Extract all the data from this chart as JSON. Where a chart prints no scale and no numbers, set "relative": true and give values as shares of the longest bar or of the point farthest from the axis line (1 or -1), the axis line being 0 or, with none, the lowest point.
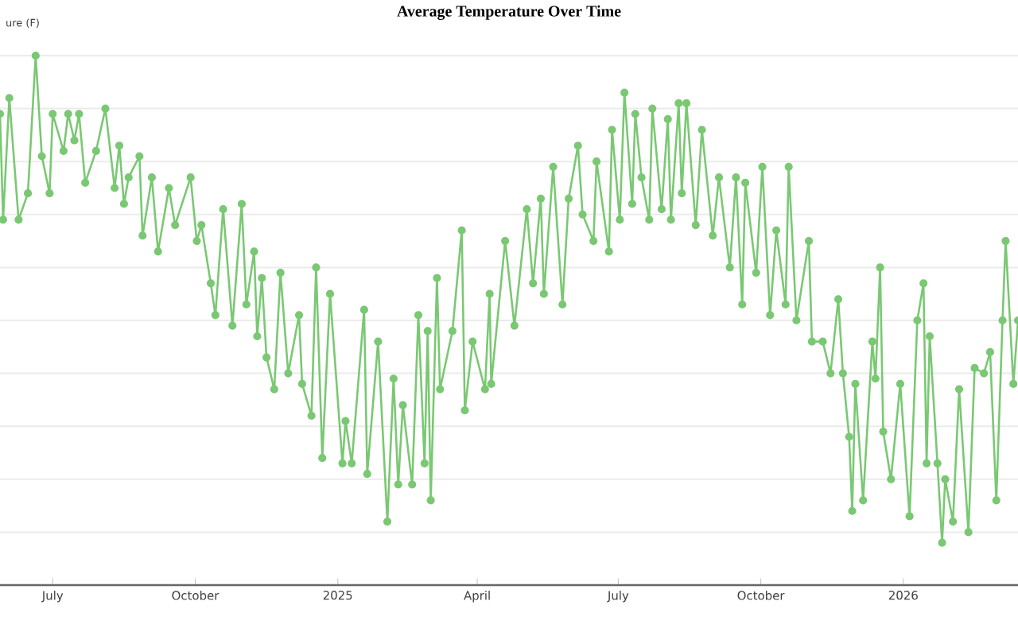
{
  "chart_data": {
    "type": "line",
    "title": "Average Temperature Over Time",
    "ylabel": "ure (F)",
    "relative": true,
    "grid": "y",
    "marker": "circle",
    "line_style": "solid",
    "xlim": [
      "2024-05-28",
      "2026-03-16"
    ],
    "xticks": [
      {
        "value": "2024-07-01",
        "label": "July"
      },
      {
        "value": "2024-10-01",
        "label": "October"
      },
      {
        "value": "2025-01-01",
        "label": "2025"
      },
      {
        "value": "2025-04-01",
        "label": "April"
      },
      {
        "value": "2025-07-01",
        "label": "July"
      },
      {
        "value": "2025-10-01",
        "label": "October"
      },
      {
        "value": "2026-01-01",
        "label": "2026"
      }
    ],
    "x": [
      "2024-05-28",
      "2024-05-30",
      "2024-06-03",
      "2024-06-09",
      "2024-06-15",
      "2024-06-20",
      "2024-06-24",
      "2024-06-29",
      "2024-07-01",
      "2024-07-08",
      "2024-07-11",
      "2024-07-15",
      "2024-07-18",
      "2024-07-22",
      "2024-07-29",
      "2024-08-04",
      "2024-08-10",
      "2024-08-13",
      "2024-08-16",
      "2024-08-19",
      "2024-08-26",
      "2024-08-28",
      "2024-09-03",
      "2024-09-07",
      "2024-09-14",
      "2024-09-18",
      "2024-09-28",
      "2024-10-02",
      "2024-10-05",
      "2024-10-11",
      "2024-10-14",
      "2024-10-19",
      "2024-10-25",
      "2024-10-31",
      "2024-11-03",
      "2024-11-08",
      "2024-11-10",
      "2024-11-13",
      "2024-11-16",
      "2024-11-21",
      "2024-11-25",
      "2024-11-30",
      "2024-12-07",
      "2024-12-09",
      "2024-12-15",
      "2024-12-18",
      "2024-12-22",
      "2024-12-27",
      "2025-01-04",
      "2025-01-06",
      "2025-01-10",
      "2025-01-18",
      "2025-01-20",
      "2025-01-27",
      "2025-02-02",
      "2025-02-06",
      "2025-02-09",
      "2025-02-12",
      "2025-02-18",
      "2025-02-22",
      "2025-02-26",
      "2025-02-28",
      "2025-03-02",
      "2025-03-06",
      "2025-03-08",
      "2025-03-16",
      "2025-03-22",
      "2025-03-24",
      "2025-03-29",
      "2025-04-06",
      "2025-04-09",
      "2025-04-10",
      "2025-04-19",
      "2025-04-25",
      "2025-05-03",
      "2025-05-07",
      "2025-05-12",
      "2025-05-14",
      "2025-05-20",
      "2025-05-26",
      "2025-05-30",
      "2025-06-05",
      "2025-06-08",
      "2025-06-15",
      "2025-06-17",
      "2025-06-25",
      "2025-06-27",
      "2025-07-02",
      "2025-07-05",
      "2025-07-10",
      "2025-07-12",
      "2025-07-16",
      "2025-07-21",
      "2025-07-23",
      "2025-07-29",
      "2025-08-02",
      "2025-08-04",
      "2025-08-09",
      "2025-08-11",
      "2025-08-14",
      "2025-08-20",
      "2025-08-24",
      "2025-08-31",
      "2025-09-04",
      "2025-09-11",
      "2025-09-15",
      "2025-09-19",
      "2025-09-21",
      "2025-09-28",
      "2025-10-02",
      "2025-10-07",
      "2025-10-11",
      "2025-10-17",
      "2025-10-19",
      "2025-10-24",
      "2025-11-01",
      "2025-11-03",
      "2025-11-10",
      "2025-11-15",
      "2025-11-20",
      "2025-11-23",
      "2025-11-27",
      "2025-11-29",
      "2025-12-01",
      "2025-12-06",
      "2025-12-12",
      "2025-12-14",
      "2025-12-17",
      "2025-12-19",
      "2025-12-24",
      "2025-12-30",
      "2026-01-05",
      "2026-01-10",
      "2026-01-14",
      "2026-01-16",
      "2026-01-18",
      "2026-01-23",
      "2026-01-26",
      "2026-01-28",
      "2026-02-02",
      "2026-02-06",
      "2026-02-12",
      "2026-02-16",
      "2026-02-22",
      "2026-02-26",
      "2026-03-02",
      "2026-03-06",
      "2026-03-08",
      "2026-03-13",
      "2026-03-16"
    ],
    "series": [
      {
        "color": "#7ac873",
        "values": [
          0.89,
          0.69,
          0.92,
          0.69,
          0.74,
          1.0,
          0.81,
          0.74,
          0.89,
          0.82,
          0.89,
          0.84,
          0.89,
          0.76,
          0.82,
          0.9,
          0.75,
          0.83,
          0.72,
          0.77,
          0.81,
          0.66,
          0.77,
          0.63,
          0.75,
          0.68,
          0.77,
          0.65,
          0.68,
          0.57,
          0.51,
          0.71,
          0.49,
          0.72,
          0.53,
          0.63,
          0.47,
          0.58,
          0.43,
          0.37,
          0.59,
          0.4,
          0.51,
          0.38,
          0.32,
          0.6,
          0.24,
          0.55,
          0.23,
          0.31,
          0.23,
          0.52,
          0.21,
          0.46,
          0.12,
          0.39,
          0.19,
          0.34,
          0.19,
          0.51,
          0.23,
          0.48,
          0.16,
          0.58,
          0.37,
          0.48,
          0.67,
          0.33,
          0.46,
          0.37,
          0.55,
          0.38,
          0.65,
          0.49,
          0.71,
          0.57,
          0.73,
          0.55,
          0.79,
          0.53,
          0.73,
          0.83,
          0.7,
          0.65,
          0.8,
          0.63,
          0.86,
          0.69,
          0.93,
          0.72,
          0.89,
          0.77,
          0.69,
          0.9,
          0.71,
          0.88,
          0.69,
          0.91,
          0.74,
          0.91,
          0.68,
          0.86,
          0.66,
          0.77,
          0.6,
          0.77,
          0.53,
          0.76,
          0.59,
          0.79,
          0.51,
          0.67,
          0.53,
          0.79,
          0.5,
          0.65,
          0.46,
          0.46,
          0.4,
          0.54,
          0.4,
          0.28,
          0.14,
          0.38,
          0.16,
          0.46,
          0.39,
          0.6,
          0.29,
          0.2,
          0.38,
          0.13,
          0.5,
          0.57,
          0.23,
          0.47,
          0.23,
          0.08,
          0.2,
          0.12,
          0.37,
          0.1,
          0.41,
          0.4,
          0.44,
          0.16,
          0.5,
          0.65,
          0.38,
          0.5
        ]
      }
    ]
  }
}
